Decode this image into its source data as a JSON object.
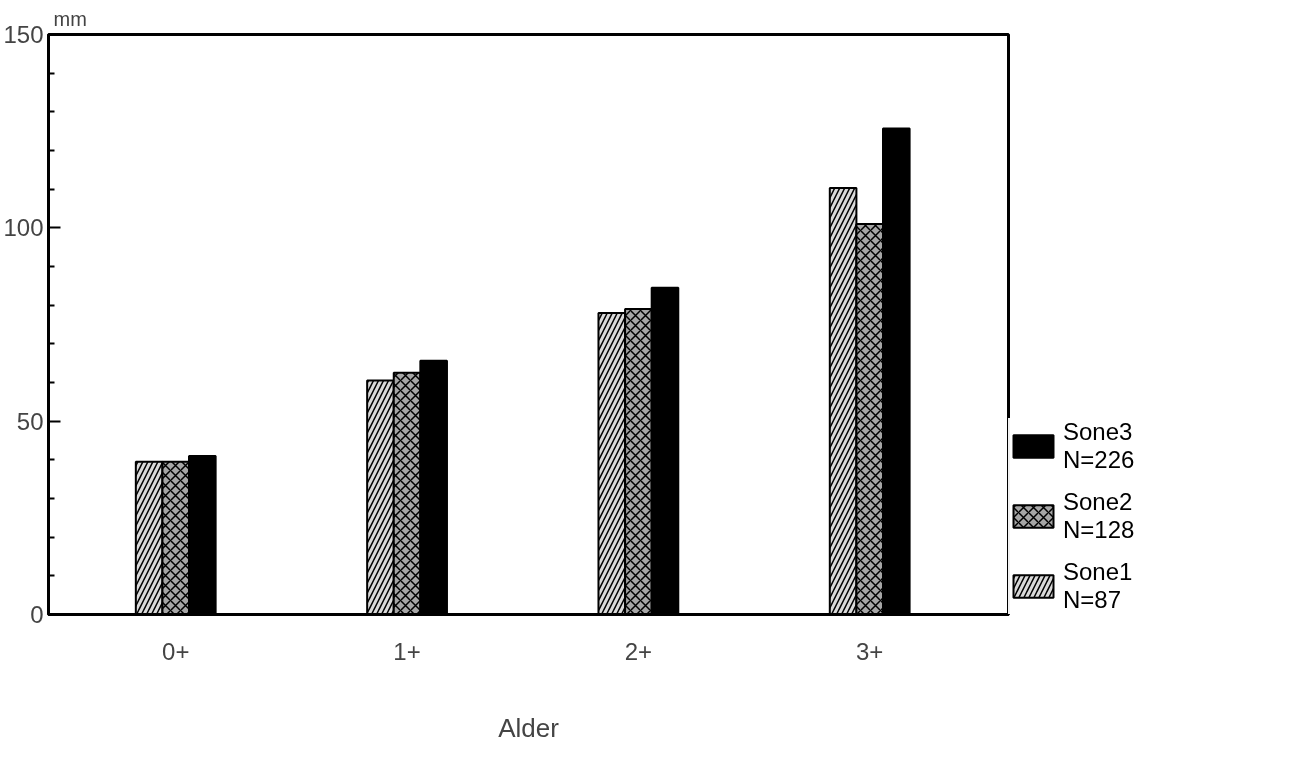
{
  "chart_data": {
    "type": "bar",
    "xlabel": "Alder",
    "ylabel": "mm",
    "categories": [
      "0+",
      "1+",
      "2+",
      "3+"
    ],
    "series": [
      {
        "name": "Sone1\nN=87",
        "color": "#d9d9d9",
        "values": [
          39.5,
          60.5,
          78,
          110.3
        ]
      },
      {
        "name": "Sone2\nN=128",
        "color": "#a6a6a6",
        "values": [
          39.5,
          62.5,
          79,
          101
        ]
      },
      {
        "name": "Sone3\nN=226",
        "color": "#000000",
        "values": [
          41,
          65.6,
          84.5,
          125.7
        ]
      }
    ],
    "ylim": [
      0,
      150
    ],
    "yticks": [
      0,
      {
        "value": 10,
        "label": null
      },
      {
        "value": 20,
        "label": null
      },
      {
        "value": 30,
        "label": null
      },
      {
        "value": 40,
        "label": null
      },
      50,
      {
        "value": 60,
        "label": null
      },
      {
        "value": 70,
        "label": null
      },
      {
        "value": 80,
        "label": null
      },
      {
        "value": 90,
        "label": null
      },
      100,
      {
        "value": 110,
        "label": null
      },
      {
        "value": 120,
        "label": null
      },
      {
        "value": 130,
        "label": null
      },
      {
        "value": 140,
        "label": null
      },
      150
    ],
    "grid": false,
    "legend": "right"
  }
}
